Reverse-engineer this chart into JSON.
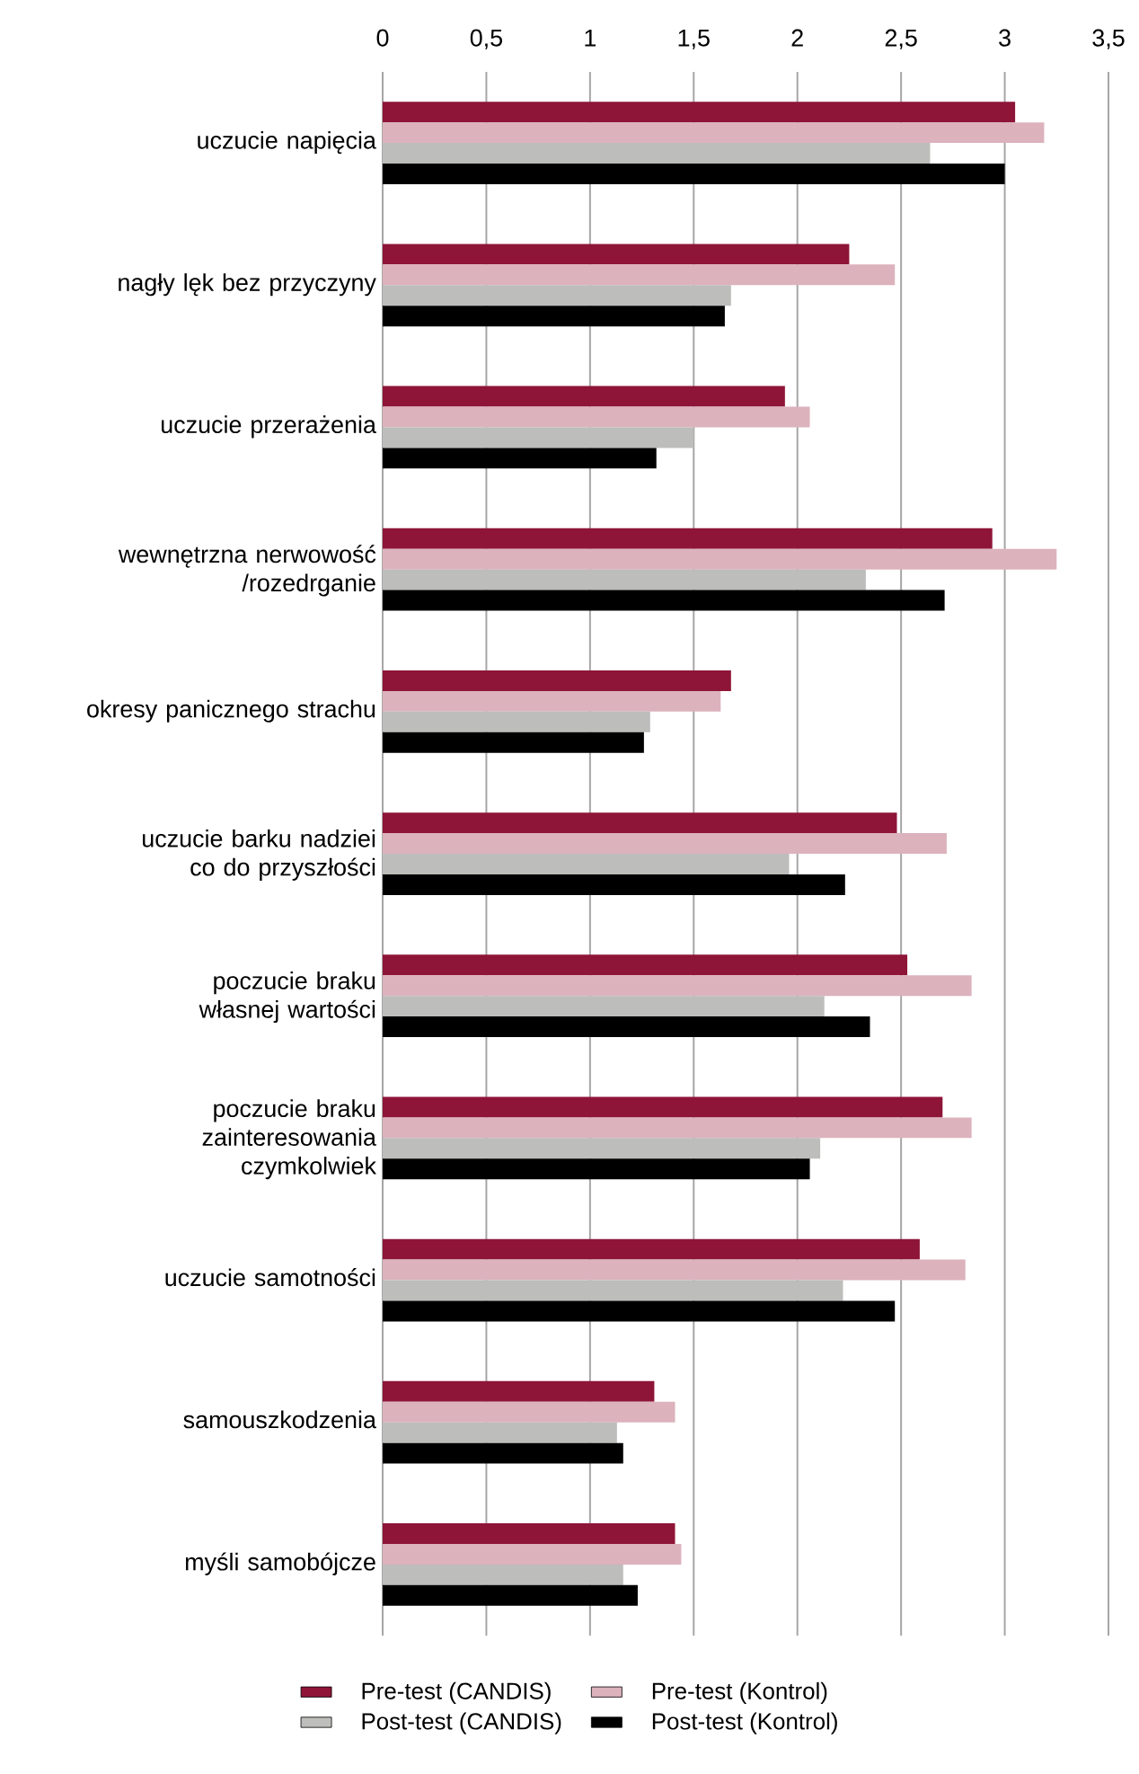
{
  "chart_data": {
    "type": "bar",
    "orientation": "horizontal",
    "categories": [
      "uczucie napięcia",
      "nagły lęk bez przyczyny",
      "uczucie przerażenia",
      "wewnętrzna nerwowość /rozedrganie",
      "okresy panicznego strachu",
      "uczucie barku nadziei co do przyszłości",
      "poczucie braku własnej wartości",
      "poczucie braku zainteresowania czymkolwiek",
      "uczucie samotności",
      "samouszkodzenia",
      "myśli samobójcze"
    ],
    "series": [
      {
        "name": "Pre-test (CANDIS)",
        "color": "#8e1538",
        "values": [
          3.05,
          2.25,
          1.94,
          2.94,
          1.68,
          2.48,
          2.53,
          2.7,
          2.59,
          1.31,
          1.41
        ]
      },
      {
        "name": "Pre-test (Kontrol)",
        "color": "#dcb2bd",
        "values": [
          3.19,
          2.47,
          2.06,
          3.25,
          1.63,
          2.72,
          2.84,
          2.84,
          2.81,
          1.41,
          1.44
        ]
      },
      {
        "name": "Post-test (CANDIS)",
        "color": "#bdbdbb",
        "values": [
          2.64,
          1.68,
          1.5,
          2.33,
          1.29,
          1.96,
          2.13,
          2.11,
          2.22,
          1.13,
          1.16
        ]
      },
      {
        "name": "Post-test (Kontrol)",
        "color": "#000000",
        "values": [
          3.0,
          1.65,
          1.32,
          2.71,
          1.26,
          2.23,
          2.35,
          2.06,
          2.47,
          1.16,
          1.23
        ]
      }
    ],
    "xlim": [
      0,
      3.5
    ],
    "xticks": [
      0,
      {
        "value": 0.5,
        "label": "0,5"
      },
      1,
      {
        "value": 1.5,
        "label": "1,5"
      },
      2,
      {
        "value": 2.5,
        "label": "2,5"
      },
      3,
      {
        "value": 3.5,
        "label": "3,5"
      }
    ],
    "grid": "x",
    "legend": "bottom"
  }
}
